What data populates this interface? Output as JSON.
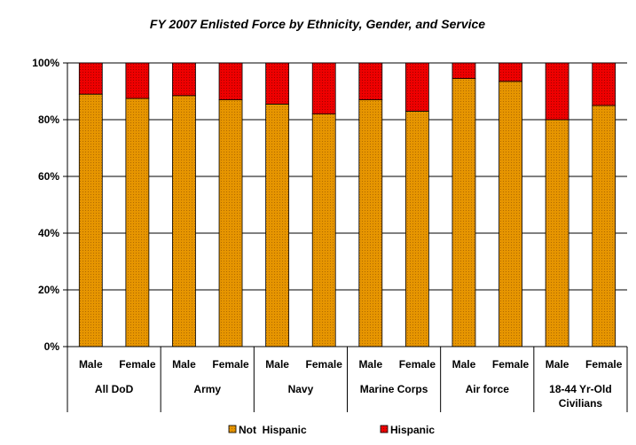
{
  "chart_data": {
    "type": "bar",
    "stacked": "percent",
    "title": "FY 2007 Enlisted Force by Ethnicity, Gender, and Service",
    "xlabel": "",
    "ylabel": "",
    "ylim": [
      0,
      100
    ],
    "yticks": [
      "0%",
      "20%",
      "40%",
      "60%",
      "80%",
      "100%"
    ],
    "grid": true,
    "legend_position": "bottom",
    "groups": [
      {
        "label": "All DoD",
        "categories": [
          "Male",
          "Female"
        ]
      },
      {
        "label": "Army",
        "categories": [
          "Male",
          "Female"
        ]
      },
      {
        "label": "Navy",
        "categories": [
          "Male",
          "Female"
        ]
      },
      {
        "label": "Marine Corps",
        "categories": [
          "Male",
          "Female"
        ]
      },
      {
        "label": "Air force",
        "categories": [
          "Male",
          "Female"
        ]
      },
      {
        "label": "18-44 Yr-Old Civilians",
        "categories": [
          "Male",
          "Female"
        ]
      }
    ],
    "series": [
      {
        "name": "Not  Hispanic",
        "color": "#E69500",
        "values": [
          89,
          87.5,
          88.5,
          87,
          85.5,
          82,
          87,
          83,
          94.5,
          93.5,
          80,
          85
        ]
      },
      {
        "name": "Hispanic",
        "color": "#EE0000",
        "values": [
          11,
          12.5,
          11.5,
          13,
          14.5,
          18,
          13,
          17,
          5.5,
          6.5,
          20,
          15
        ]
      }
    ]
  }
}
